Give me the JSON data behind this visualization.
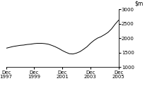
{
  "title": "",
  "ylim": [
    1000,
    3000
  ],
  "yticks": [
    1000,
    1500,
    2000,
    2500,
    3000
  ],
  "xtick_labels": [
    "Dec\n1997",
    "Dec\n1999",
    "Dec\n2001",
    "Dec\n2003",
    "Dec\n2005"
  ],
  "xtick_positions": [
    0,
    2,
    4,
    6,
    8
  ],
  "line_color": "#000000",
  "background_color": "#ffffff",
  "x": [
    0,
    0.25,
    0.5,
    0.75,
    1.0,
    1.25,
    1.5,
    1.75,
    2.0,
    2.25,
    2.5,
    2.75,
    3.0,
    3.25,
    3.5,
    3.75,
    4.0,
    4.25,
    4.5,
    4.75,
    5.0,
    5.25,
    5.5,
    5.75,
    6.0,
    6.25,
    6.5,
    6.75,
    7.0,
    7.25,
    7.5,
    7.75,
    8.0
  ],
  "y": [
    1650,
    1680,
    1710,
    1730,
    1750,
    1760,
    1780,
    1790,
    1810,
    1820,
    1820,
    1810,
    1790,
    1750,
    1700,
    1640,
    1570,
    1510,
    1460,
    1450,
    1480,
    1530,
    1610,
    1700,
    1820,
    1920,
    2000,
    2050,
    2120,
    2200,
    2320,
    2480,
    2620
  ]
}
